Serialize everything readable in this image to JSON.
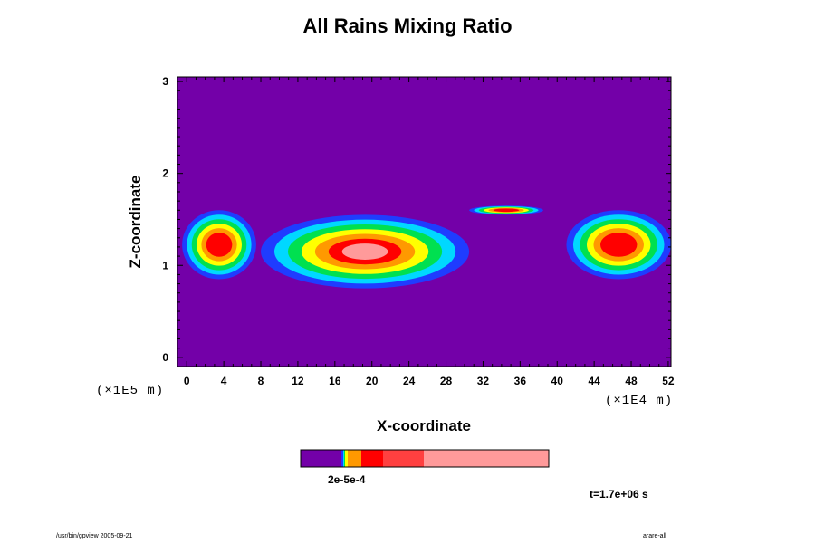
{
  "chart_data": {
    "type": "heatmap",
    "title": "All Rains Mixing Ratio",
    "xlabel": "X-coordinate",
    "ylabel": "Z-coordinate",
    "x_scale_label": "(×1E4 m)",
    "y_scale_label": "(×1E5 m)",
    "x_ticks": [
      "0",
      "4",
      "8",
      "12",
      "16",
      "20",
      "24",
      "28",
      "32",
      "36",
      "40",
      "44",
      "48",
      "52"
    ],
    "y_ticks": [
      "0",
      "1",
      "2",
      "3"
    ],
    "xlim": [
      -1,
      52.3
    ],
    "ylim": [
      -0.1,
      3.05
    ],
    "background_color": "#7300a8",
    "colorbar": {
      "colors": [
        "#7300a8",
        "#1f3cff",
        "#00d8ff",
        "#00e050",
        "#ffff00",
        "#ff9900",
        "#ff0000",
        "#ff4040",
        "#ff9a9a"
      ],
      "tick_label": "2e-5e-4"
    },
    "regions": [
      {
        "x": [
          -0.5,
          7.5
        ],
        "y": [
          0.85,
          1.6
        ],
        "peak": "red"
      },
      {
        "x": [
          8,
          30.5
        ],
        "y": [
          0.75,
          1.55
        ],
        "peak": "pink"
      },
      {
        "x": [
          30.5,
          38.5
        ],
        "y": [
          1.55,
          1.65
        ],
        "peak": "red"
      },
      {
        "x": [
          41,
          52.3
        ],
        "y": [
          0.85,
          1.6
        ],
        "peak": "red"
      }
    ],
    "grid": false
  },
  "annotations": {
    "time": "t=1.7e+06 s",
    "footer_left": "/usr/bin/gpview 2005-09-21",
    "footer_right": "arare-all"
  }
}
